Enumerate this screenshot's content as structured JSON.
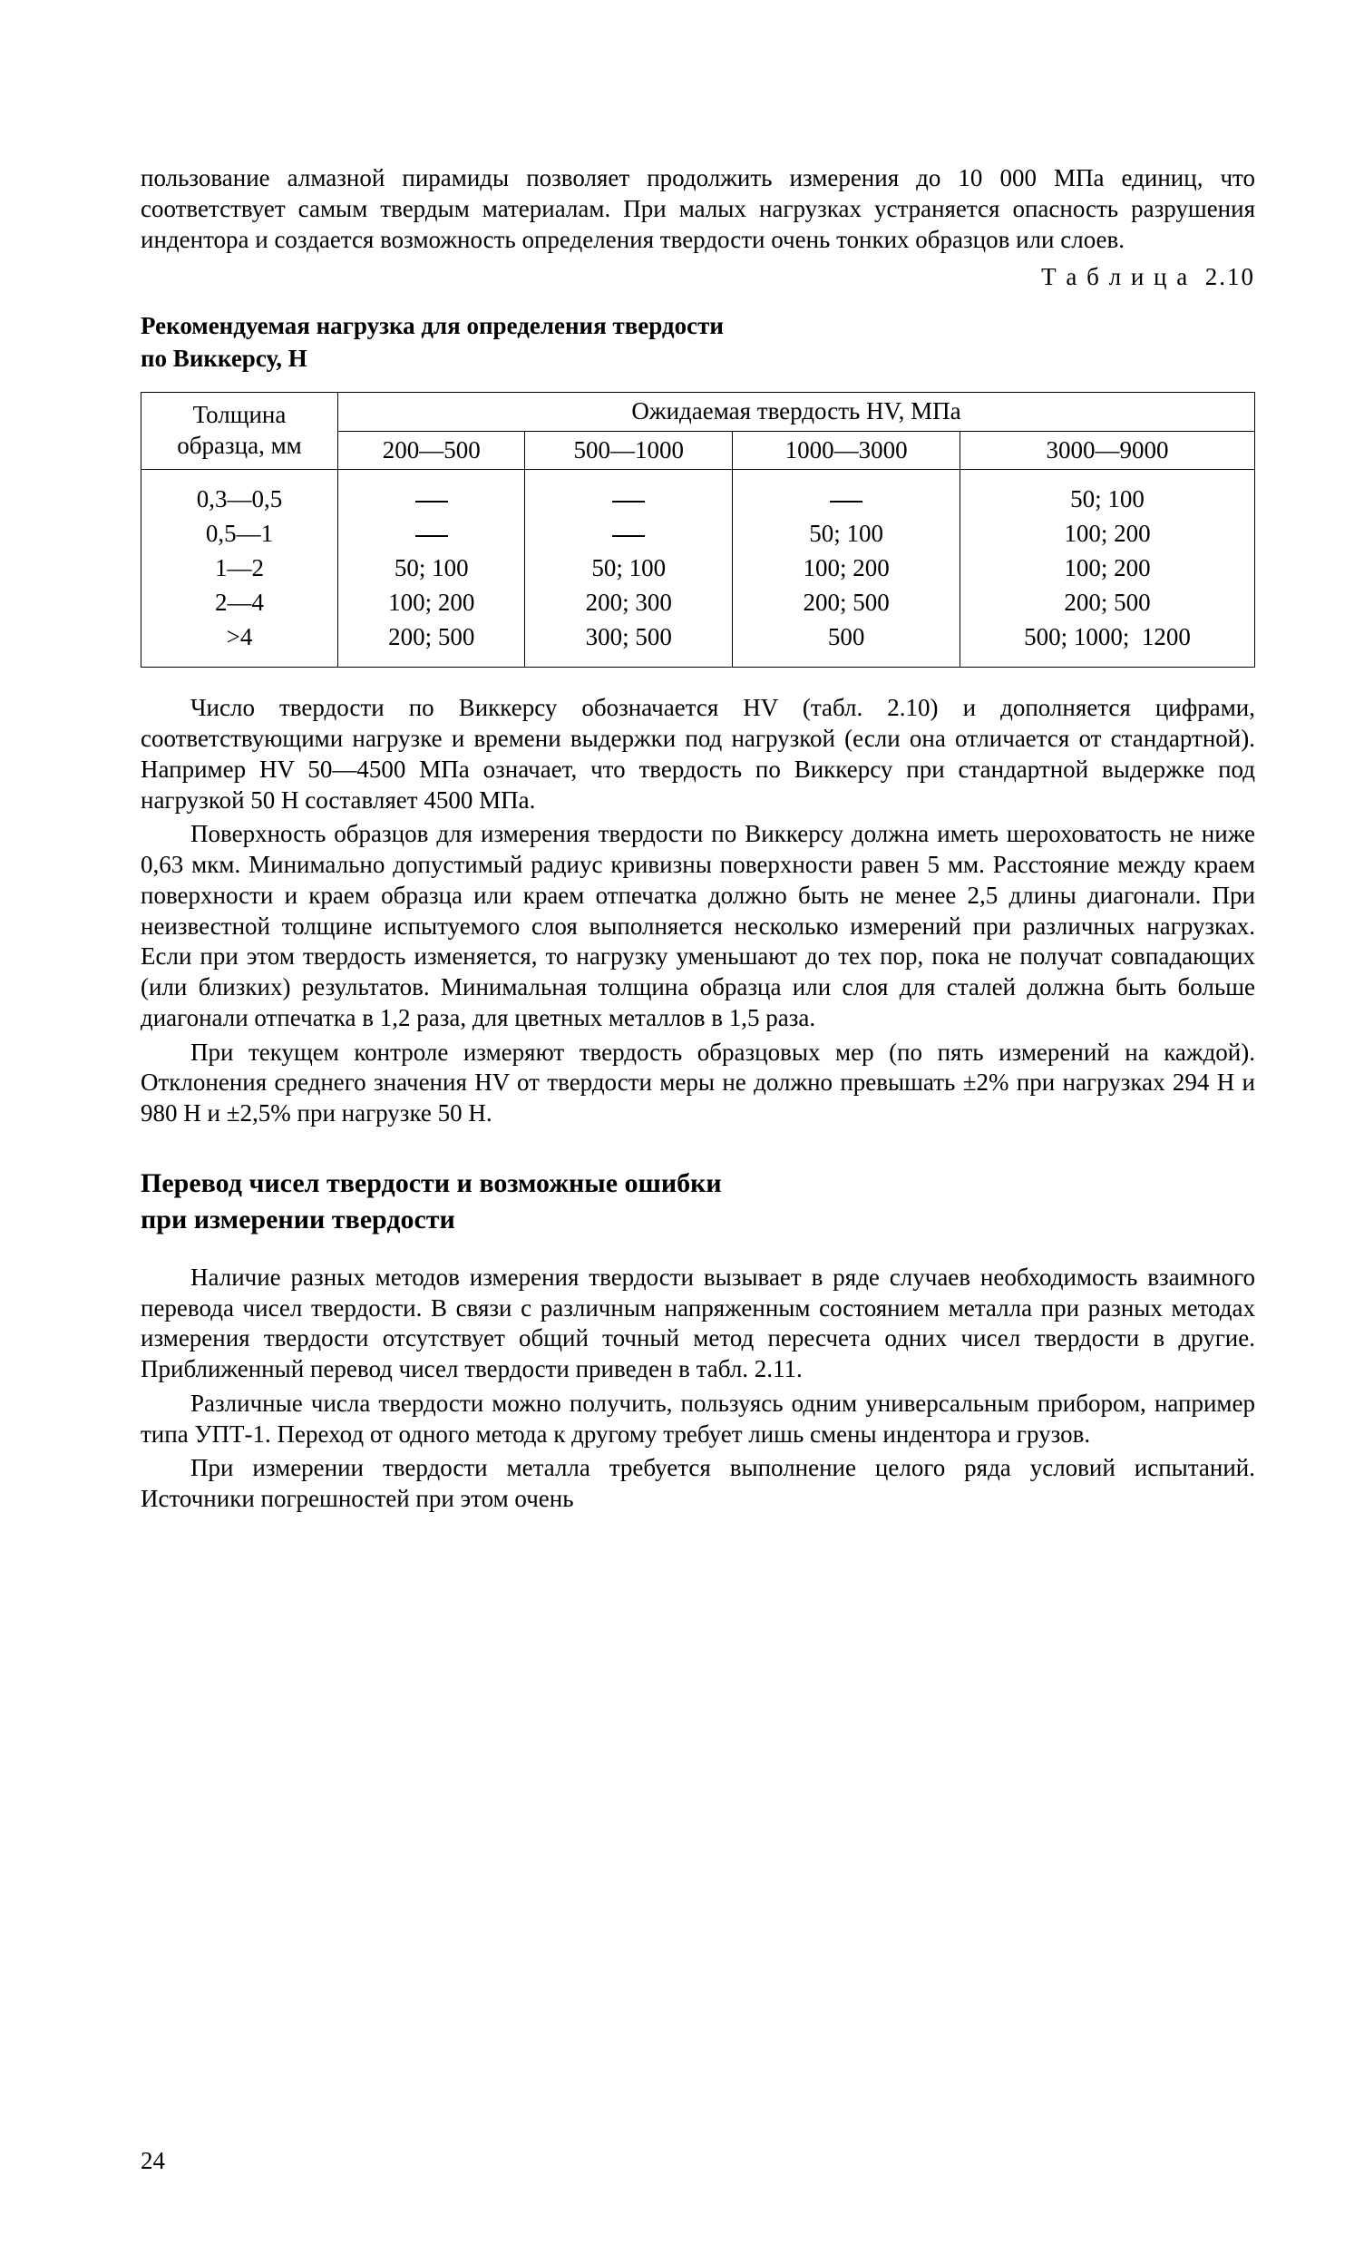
{
  "intro_para": "пользование алмазной пирамиды позволяет продолжить измерения до 10 000 МПа единиц, что соответствует самым твердым материалам. При малых нагрузках устраняется опасность разрушения индентора и создается возможность определения твердости очень тонких образцов или слоев.",
  "table_label": "Т а б л и ц а  2.10",
  "table_title_l1": "Рекомендуемая нагрузка для определения твердости",
  "table_title_l2": "по Виккерсу, Н",
  "table": {
    "col_header_left": "Толщина образца, мм",
    "col_header_top": "Ожидаемая твердость HV, МПа",
    "ranges": [
      "200—500",
      "500—1000",
      "1000—3000",
      "3000—9000"
    ],
    "thickness": [
      "0,3—0,5",
      "0,5—1",
      "1—2",
      "2—4",
      ">4"
    ],
    "cells": {
      "c200": [
        "—",
        "—",
        "50; 100",
        "100; 200",
        "200; 500"
      ],
      "c500": [
        "—",
        "—",
        "50; 100",
        "200; 300",
        "300; 500"
      ],
      "c1000": [
        "—",
        "50; 100",
        "100; 200",
        "200; 500",
        "500"
      ],
      "c3000": [
        "50; 100",
        "100; 200",
        "100; 200",
        "200; 500",
        "500; 1000;  1200"
      ]
    }
  },
  "para2": "Число твердости по Виккерсу обозначается HV (табл. 2.10) и дополняется цифрами, соответствующими нагрузке и времени выдержки под нагрузкой (если она отличается от стандартной). Например HV 50—4500 МПа означает, что твердость по Виккерсу при стандартной выдержке под нагрузкой 50 Н составляет 4500 МПа.",
  "para3": "Поверхность образцов для измерения твердости по Виккерсу должна иметь шероховатость не ниже 0,63 мкм. Минимально допустимый радиус кривизны поверхности равен 5 мм. Расстояние между краем поверхности и краем образца или краем отпечатка должно быть не менее 2,5 длины диагонали. При неизвестной толщине испытуемого слоя выполняется несколько измерений при различных нагрузках. Если при этом твердость изменяется, то нагрузку уменьшают до тех пор, пока не получат совпадающих (или близких) результатов. Минимальная толщина образца или слоя для сталей должна быть больше диагонали отпечатка в 1,2 раза, для цветных металлов в 1,5 раза.",
  "para4": "При текущем контроле измеряют твердость образцовых мер (по пять измерений на каждой). Отклонения среднего значения HV от твердости меры не должно превышать ±2% при нагрузках 294 Н и 980 Н и ±2,5% при нагрузке 50 Н.",
  "section_title_l1": "Перевод чисел твердости и возможные ошибки",
  "section_title_l2": "при измерении твердости",
  "para5": "Наличие разных методов измерения твердости вызывает в ряде случаев необходимость взаимного перевода чисел твердости. В связи с различным напряженным состоянием металла при разных методах измерения твердости отсутствует общий точный метод пересчета одних чисел твердости в другие. Приближенный перевод чисел твердости приведен в табл. 2.11.",
  "para6": "Различные числа твердости можно получить, пользуясь одним универсальным прибором, например типа УПТ-1. Переход от одного метода к другому требует лишь смены индентора и грузов.",
  "para7": "При измерении твердости металла требуется выполнение целого ряда условий испытаний. Источники погрешностей при этом очень",
  "page_number": "24"
}
